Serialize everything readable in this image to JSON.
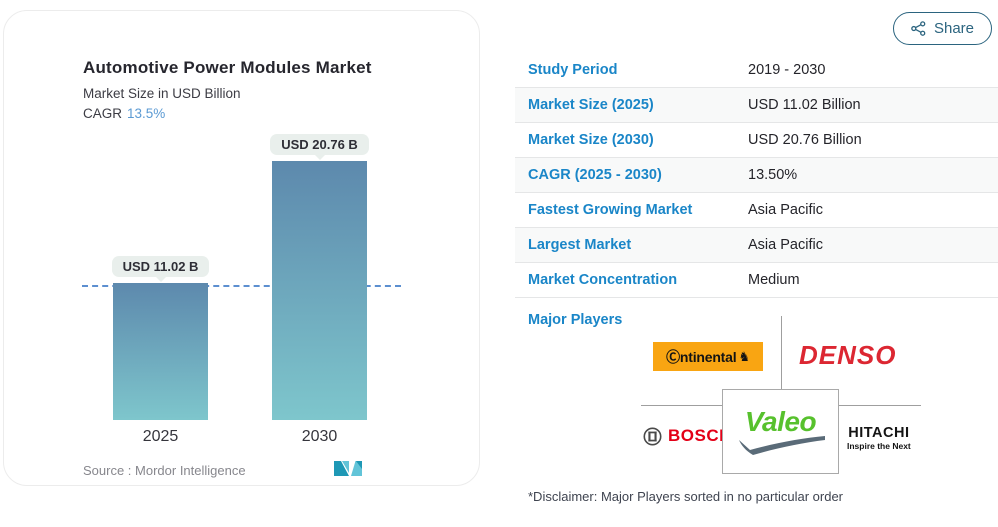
{
  "share": {
    "label": "Share"
  },
  "chart": {
    "title": "Automotive Power Modules Market",
    "subtitle": "Market Size in USD Billion",
    "cagr_label": "CAGR",
    "cagr_value": "13.5%",
    "source_label": "Source :  Mordor Intelligence",
    "bars": [
      {
        "year": "2025",
        "label": "USD 11.02 B"
      },
      {
        "year": "2030",
        "label": "USD 20.76 B"
      }
    ]
  },
  "chart_data": {
    "type": "bar",
    "title": "Automotive Power Modules Market",
    "subtitle": "Market Size in USD Billion",
    "cagr": "13.5%",
    "categories": [
      "2025",
      "2030"
    ],
    "values": [
      11.02,
      20.76
    ],
    "data_labels": [
      "USD 11.02 B",
      "USD 20.76 B"
    ],
    "reference_line": 11.02,
    "ylim": [
      0,
      20.76
    ],
    "grid": false,
    "source": "Mordor Intelligence",
    "colors": {
      "bar_top": "#5d89ad",
      "bar_bottom": "#7ec6cc",
      "dash_line": "#5c8fd0"
    }
  },
  "table": {
    "rows": [
      {
        "label": "Study Period",
        "value": "2019 - 2030"
      },
      {
        "label": "Market Size (2025)",
        "value": "USD 11.02 Billion"
      },
      {
        "label": "Market Size (2030)",
        "value": "USD 20.76 Billion"
      },
      {
        "label": "CAGR (2025 - 2030)",
        "value": "13.50%"
      },
      {
        "label": "Fastest Growing Market",
        "value": "Asia Pacific"
      },
      {
        "label": "Largest Market",
        "value": "Asia Pacific"
      },
      {
        "label": "Market Concentration",
        "value": "Medium"
      }
    ]
  },
  "major_players": {
    "label": "Major Players",
    "continental_text": "Ⓒntinental",
    "continental_horse": "♞",
    "denso_text": "DENSO",
    "bosch_text": "BOSCH",
    "valeo_text": "Valeo",
    "hitachi_text": "HITACHI",
    "hitachi_tagline": "Inspire the Next"
  },
  "disclaimer": "*Disclaimer: Major Players sorted in no particular order",
  "colors": {
    "accent_blue": "#1a86c8",
    "cagr_blue": "#5b9ad3",
    "share_teal": "#2b647f",
    "continental_orange": "#f9a512",
    "denso_red": "#dc2732",
    "bosch_red": "#e30017",
    "valeo_green": "#57c12d",
    "pill_bg": "#e9efec"
  }
}
